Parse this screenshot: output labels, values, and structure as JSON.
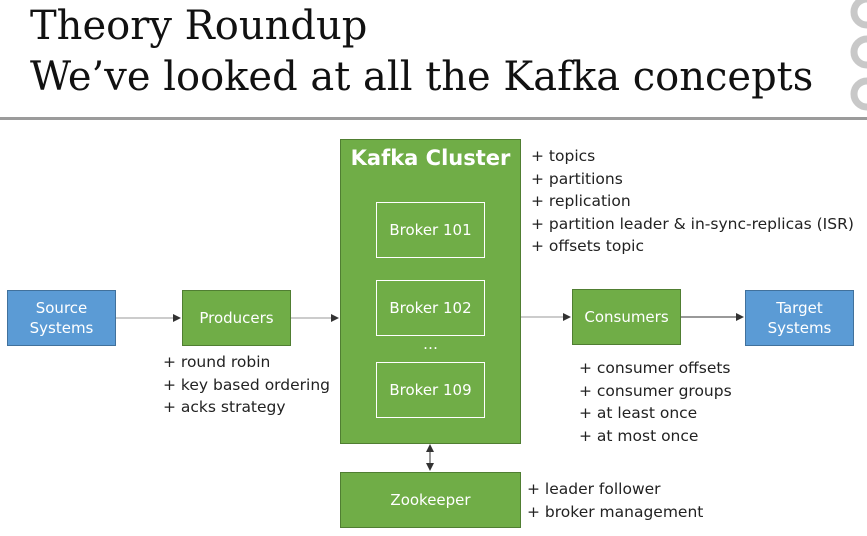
{
  "title": {
    "line1": "Theory Roundup",
    "line2": "We’ve looked at all the Kafka concepts"
  },
  "diagram": {
    "source": "Source\nSystems",
    "producers": "Producers",
    "cluster_title": "Kafka Cluster",
    "brokers": [
      "Broker 101",
      "Broker 102",
      "Broker 109"
    ],
    "ellipsis": "…",
    "consumers": "Consumers",
    "target": "Target\nSystems",
    "zookeeper": "Zookeeper"
  },
  "notes": {
    "cluster": [
      "+ topics",
      "+ partitions",
      "+ replication",
      "+ partition leader & in-sync-replicas (ISR)",
      "+ offsets topic"
    ],
    "producers": [
      "+ round robin",
      "+ key based ordering",
      "+ acks strategy"
    ],
    "consumers": [
      "+ consumer offsets",
      "+ consumer groups",
      "+ at least once",
      "+ at most once"
    ],
    "zookeeper": [
      "+ leader follower",
      "+ broker management"
    ]
  },
  "colors": {
    "blue_box": "#5b9bd5",
    "green_box": "#70ad47",
    "rule": "#9b9b9b"
  }
}
